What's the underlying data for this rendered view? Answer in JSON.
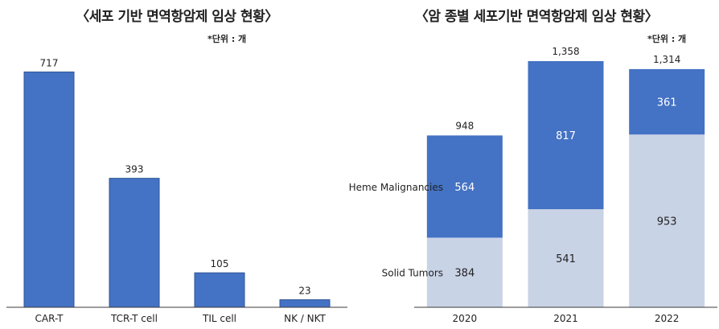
{
  "colors": {
    "primary": "#4472C4",
    "light": "#C9D3E6",
    "axis": "#3a3a3a",
    "text": "#222222"
  },
  "chart_data": [
    {
      "type": "bar",
      "title": "〈세포 기반 면역항암제 임상 현황〉",
      "unit_note": "*단위 : 개",
      "categories": [
        "CAR-T",
        "TCR-T cell",
        "TIL cell",
        "NK / NKT"
      ],
      "values": [
        717,
        393,
        105,
        23
      ],
      "value_labels": [
        "717",
        "393",
        "105",
        "23"
      ],
      "ylim": [
        0,
        800
      ],
      "grid": false,
      "legend": "none"
    },
    {
      "type": "bar",
      "stacked": true,
      "title": "〈암 종별 세포기반 면역항암제 임상 현황〉",
      "unit_note": "*단위 : 개",
      "categories": [
        "2020",
        "2021",
        "2022"
      ],
      "series": [
        {
          "name": "Solid Tumors",
          "values": [
            384,
            541,
            953
          ],
          "labels": [
            "384",
            "541",
            "953"
          ]
        },
        {
          "name": "Heme Malignancies",
          "values": [
            564,
            817,
            361
          ],
          "labels": [
            "564",
            "817",
            "361"
          ]
        }
      ],
      "totals": [
        948,
        1358,
        1314
      ],
      "total_labels": [
        "948",
        "1,358",
        "1,314"
      ],
      "ylim": [
        0,
        1500
      ],
      "grid": false,
      "legend": "left, inline series labels"
    }
  ]
}
